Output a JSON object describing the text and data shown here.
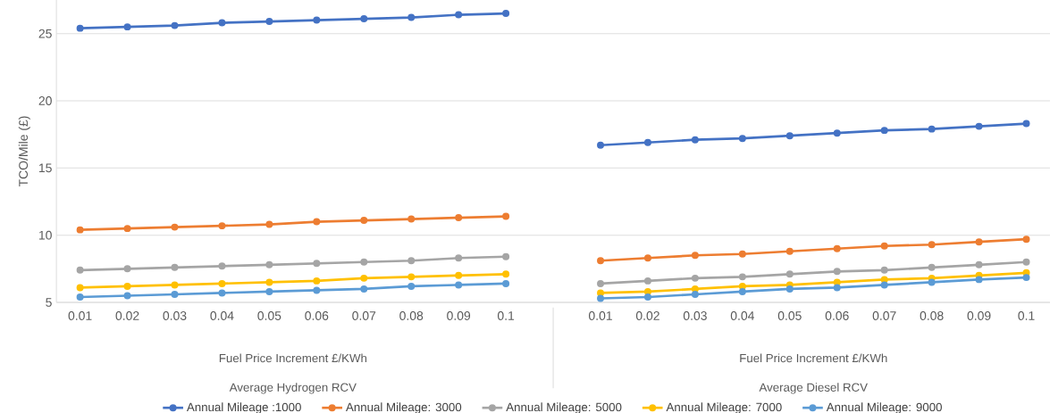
{
  "chart_data": {
    "type": "line",
    "ylabel": "TCO/Mile (£)",
    "categories": [
      "0.01",
      "0.02",
      "0.03",
      "0.04",
      "0.05",
      "0.06",
      "0.07",
      "0.08",
      "0.09",
      "0.1",
      null,
      "0.01",
      "0.02",
      "0.03",
      "0.04",
      "0.05",
      "0.06",
      "0.07",
      "0.08",
      "0.09",
      "0.1"
    ],
    "series": [
      {
        "name": "Annual Mileage :1000",
        "color": "#4472c4",
        "values": [
          25.4,
          25.5,
          25.6,
          25.8,
          25.9,
          26.0,
          26.1,
          26.2,
          26.4,
          26.5,
          null,
          16.7,
          16.9,
          17.1,
          17.2,
          17.4,
          17.6,
          17.8,
          17.9,
          18.1,
          18.3
        ]
      },
      {
        "name": "Annual Mileage: 3000",
        "color": "#ed7d31",
        "values": [
          10.4,
          10.5,
          10.6,
          10.7,
          10.8,
          11.0,
          11.1,
          11.2,
          11.3,
          11.4,
          null,
          8.1,
          8.3,
          8.5,
          8.6,
          8.8,
          9.0,
          9.2,
          9.3,
          9.5,
          9.7
        ]
      },
      {
        "name": "Annual Mileage: 5000",
        "color": "#a5a5a5",
        "values": [
          7.4,
          7.5,
          7.6,
          7.7,
          7.8,
          7.9,
          8.0,
          8.1,
          8.3,
          8.4,
          null,
          6.4,
          6.6,
          6.8,
          6.9,
          7.1,
          7.3,
          7.4,
          7.6,
          7.8,
          8.0
        ]
      },
      {
        "name": "Annual Mileage: 7000",
        "color": "#ffc000",
        "values": [
          6.1,
          6.2,
          6.3,
          6.4,
          6.5,
          6.6,
          6.8,
          6.9,
          7.0,
          7.1,
          null,
          5.7,
          5.8,
          6.0,
          6.2,
          6.3,
          6.5,
          6.7,
          6.8,
          7.0,
          7.2
        ]
      },
      {
        "name": "Annual Mileage: 9000",
        "color": "#5b9bd5",
        "values": [
          5.4,
          5.5,
          5.6,
          5.7,
          5.8,
          5.9,
          6.0,
          6.2,
          6.3,
          6.4,
          null,
          5.3,
          5.4,
          5.6,
          5.8,
          6.0,
          6.1,
          6.3,
          6.5,
          6.7,
          6.85
        ]
      }
    ],
    "ylim": [
      5,
      27.5
    ],
    "yticks": [
      5,
      10,
      15,
      20,
      25
    ],
    "grid": "y",
    "marker": "circle",
    "legend": "bottom",
    "annotations": [
      "Fuel Price Increment £/KWh",
      "Average Hydrogen RCV",
      "Fuel Price Increment £/KWh",
      "Average Diesel RCV"
    ]
  }
}
